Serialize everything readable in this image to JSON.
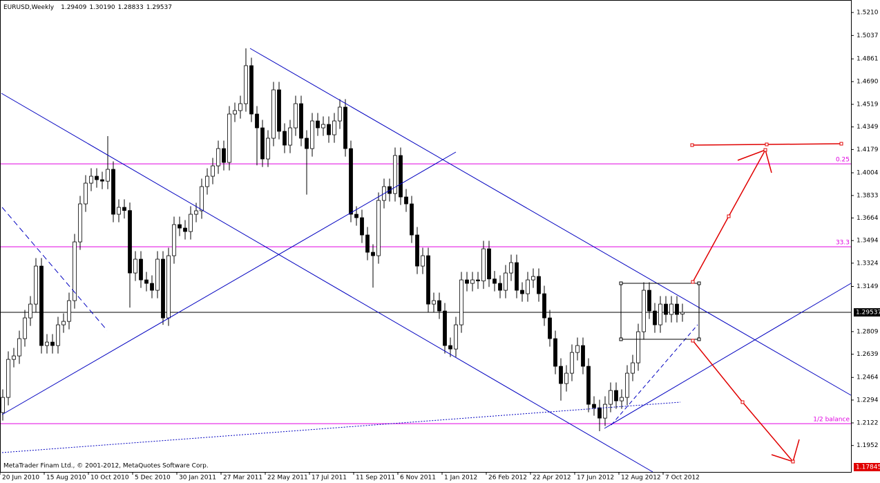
{
  "chart_data": {
    "type": "candlestick",
    "title": "EURUSD,Weekly",
    "header_values": [
      "1.29409",
      "1.30190",
      "1.28833",
      "1.29537"
    ],
    "open": [
      1.22,
      1.2314,
      1.26,
      1.2626,
      1.2756,
      1.2912,
      1.3016,
      1.3302,
      1.2704,
      1.273,
      1.2704,
      1.286,
      1.2886,
      1.3042,
      1.3484,
      1.377,
      1.3926,
      1.3978,
      1.3952,
      1.3941,
      1.403,
      1.3692,
      1.3744,
      1.372,
      1.325,
      1.3354,
      1.3198,
      1.3172,
      1.312,
      1.3354,
      1.2912,
      1.338,
      1.3614,
      1.3588,
      1.3562,
      1.3692,
      1.3718,
      1.39,
      1.3978,
      1.4056,
      1.4186,
      1.4082,
      1.4446,
      1.4472,
      1.4524,
      1.481,
      1.4446,
      1.4342,
      1.4108,
      1.4264,
      1.4628,
      1.4316,
      1.4212,
      1.4342,
      1.4524,
      1.4264,
      1.4186,
      1.4394,
      1.4342,
      1.4368,
      1.429,
      1.4394,
      1.4498,
      1.4186,
      1.3692,
      1.3666,
      1.3536,
      1.3406,
      1.338,
      1.3796,
      1.39,
      1.3848,
      1.4134,
      1.3822,
      1.377,
      1.3536,
      1.3302,
      1.338,
      1.3016,
      1.3042,
      1.2964,
      1.2704,
      1.2678,
      1.286,
      1.3198,
      1.3172,
      1.3198,
      1.319,
      1.3432,
      1.3205,
      1.3172,
      1.312,
      1.325,
      1.3328,
      1.312,
      1.3094,
      1.3198,
      1.3224,
      1.3094,
      1.2912,
      1.2756,
      1.2548,
      1.2418,
      1.2496,
      1.2652,
      1.2704,
      1.2548,
      1.2262,
      1.2236,
      1.2158,
      1.2262,
      1.2366,
      1.2288,
      1.2314,
      1.2496,
      1.2574,
      1.2808,
      1.312,
      1.2964,
      1.286,
      1.3016,
      1.2938,
      1.3016,
      1.2941
    ],
    "high": [
      1.2374,
      1.266,
      1.2686,
      1.2816,
      1.2972,
      1.3076,
      1.3362,
      1.3362,
      1.279,
      1.279,
      1.292,
      1.2946,
      1.3102,
      1.3544,
      1.383,
      1.3986,
      1.4038,
      1.4038,
      1.4012,
      1.428,
      1.409,
      1.3804,
      1.3804,
      1.378,
      1.3414,
      1.3414,
      1.3258,
      1.3232,
      1.3414,
      1.3414,
      1.344,
      1.3674,
      1.3674,
      1.3648,
      1.3752,
      1.3778,
      1.396,
      1.4038,
      1.4116,
      1.4246,
      1.4246,
      1.4506,
      1.4532,
      1.4584,
      1.494,
      1.487,
      1.4506,
      1.4402,
      1.4324,
      1.4688,
      1.4688,
      1.4376,
      1.4402,
      1.4584,
      1.4584,
      1.4324,
      1.4454,
      1.4454,
      1.4428,
      1.4428,
      1.4454,
      1.4558,
      1.4558,
      1.4246,
      1.3752,
      1.3726,
      1.3596,
      1.3466,
      1.3856,
      1.396,
      1.396,
      1.4194,
      1.4194,
      1.3882,
      1.383,
      1.3596,
      1.344,
      1.344,
      1.3102,
      1.3102,
      1.3024,
      1.2764,
      1.292,
      1.3258,
      1.3258,
      1.3258,
      1.3258,
      1.3492,
      1.3492,
      1.3265,
      1.3232,
      1.331,
      1.3388,
      1.3388,
      1.318,
      1.3258,
      1.3284,
      1.3284,
      1.3154,
      1.2972,
      1.2816,
      1.2608,
      1.2556,
      1.2712,
      1.2764,
      1.2764,
      1.2608,
      1.2322,
      1.2296,
      1.2322,
      1.2426,
      1.2426,
      1.2374,
      1.2556,
      1.2634,
      1.2868,
      1.318,
      1.318,
      1.3024,
      1.3076,
      1.3076,
      1.3076,
      1.3076,
      1.3019
    ],
    "low": [
      1.214,
      1.2254,
      1.254,
      1.2566,
      1.2696,
      1.2852,
      1.2956,
      1.2644,
      1.2644,
      1.2644,
      1.2644,
      1.28,
      1.2826,
      1.2982,
      1.3424,
      1.371,
      1.3866,
      1.3892,
      1.3881,
      1.3881,
      1.3632,
      1.3632,
      1.366,
      1.299,
      1.319,
      1.3138,
      1.3112,
      1.306,
      1.306,
      1.286,
      1.2852,
      1.332,
      1.3528,
      1.3502,
      1.3502,
      1.3632,
      1.3658,
      1.384,
      1.3918,
      1.3996,
      1.4022,
      1.4022,
      1.4386,
      1.4412,
      1.4464,
      1.4386,
      1.406,
      1.4048,
      1.4048,
      1.4204,
      1.4256,
      1.4152,
      1.4152,
      1.4282,
      1.4204,
      1.384,
      1.4126,
      1.4282,
      1.4282,
      1.423,
      1.423,
      1.4334,
      1.4126,
      1.3632,
      1.3606,
      1.3476,
      1.3346,
      1.314,
      1.332,
      1.3736,
      1.3788,
      1.3788,
      1.3762,
      1.371,
      1.3476,
      1.3242,
      1.3242,
      1.2956,
      1.2956,
      1.2904,
      1.2644,
      1.2618,
      1.2618,
      1.28,
      1.3112,
      1.3112,
      1.313,
      1.313,
      1.3145,
      1.3112,
      1.306,
      1.306,
      1.319,
      1.306,
      1.3034,
      1.3034,
      1.3138,
      1.3034,
      1.2852,
      1.2696,
      1.2488,
      1.229,
      1.2358,
      1.2436,
      1.2592,
      1.2488,
      1.2202,
      1.2176,
      1.206,
      1.2098,
      1.2202,
      1.2228,
      1.2228,
      1.2254,
      1.2436,
      1.2514,
      1.2748,
      1.2904,
      1.28,
      1.28,
      1.2878,
      1.2878,
      1.2878,
      1.2883
    ],
    "close": [
      1.2314,
      1.26,
      1.2626,
      1.2756,
      1.2912,
      1.3016,
      1.3302,
      1.2704,
      1.273,
      1.2704,
      1.286,
      1.2886,
      1.3042,
      1.3484,
      1.377,
      1.3926,
      1.3978,
      1.3952,
      1.3941,
      1.403,
      1.3692,
      1.3744,
      1.372,
      1.325,
      1.3354,
      1.3198,
      1.3172,
      1.312,
      1.3354,
      1.2912,
      1.338,
      1.3614,
      1.3588,
      1.3562,
      1.3692,
      1.3718,
      1.39,
      1.3978,
      1.4056,
      1.4186,
      1.4082,
      1.4446,
      1.4472,
      1.4524,
      1.481,
      1.4446,
      1.4342,
      1.4108,
      1.4264,
      1.4628,
      1.4316,
      1.4212,
      1.4342,
      1.4524,
      1.4264,
      1.4186,
      1.4394,
      1.4342,
      1.4368,
      1.429,
      1.4394,
      1.4498,
      1.4186,
      1.3692,
      1.3666,
      1.3536,
      1.3406,
      1.338,
      1.3796,
      1.39,
      1.3848,
      1.4134,
      1.3822,
      1.377,
      1.3536,
      1.3302,
      1.338,
      1.3016,
      1.3042,
      1.2964,
      1.2704,
      1.2678,
      1.286,
      1.3198,
      1.3172,
      1.3198,
      1.319,
      1.3432,
      1.3205,
      1.3172,
      1.312,
      1.325,
      1.3328,
      1.312,
      1.3094,
      1.3198,
      1.3224,
      1.3094,
      1.2912,
      1.2756,
      1.2548,
      1.2418,
      1.2496,
      1.2652,
      1.2704,
      1.2548,
      1.2262,
      1.2236,
      1.2158,
      1.2262,
      1.2366,
      1.2288,
      1.2314,
      1.2496,
      1.2574,
      1.2808,
      1.312,
      1.2964,
      1.286,
      1.3016,
      1.2938,
      1.3016,
      1.2938,
      1.2954
    ],
    "xlim": [
      -0.5,
      153.5
    ],
    "ylim": [
      1.1753,
      1.5304
    ],
    "xticks": [
      {
        "value": 0,
        "label": "20 Jun 2010"
      },
      {
        "value": 8,
        "label": "15 Aug 2010"
      },
      {
        "value": 16,
        "label": "10 Oct 2010"
      },
      {
        "value": 24,
        "label": "5 Dec 2010"
      },
      {
        "value": 32,
        "label": "30 Jan 2011"
      },
      {
        "value": 40,
        "label": "27 Mar 2011"
      },
      {
        "value": 48,
        "label": "22 May 2011"
      },
      {
        "value": 56,
        "label": "17 Jul 2011"
      },
      {
        "value": 64,
        "label": "11 Sep 2011"
      },
      {
        "value": 72,
        "label": "6 Nov 2011"
      },
      {
        "value": 80,
        "label": "1 Jan 2012"
      },
      {
        "value": 88,
        "label": "26 Feb 2012"
      },
      {
        "value": 96,
        "label": "22 Apr 2012"
      },
      {
        "value": 104,
        "label": "17 Jun 2012"
      },
      {
        "value": 112,
        "label": "12 Aug 2012"
      },
      {
        "value": 120,
        "label": "7 Oct 2012"
      }
    ],
    "yticks": [
      {
        "value": 1.521,
        "label": "1.5210"
      },
      1.5037,
      1.4861,
      {
        "value": 1.469,
        "label": "1.4690"
      },
      1.4519,
      1.4349,
      1.4179,
      1.4004,
      1.3833,
      1.3664,
      1.3494,
      1.3324,
      1.3149,
      1.2809,
      1.2639,
      1.2464,
      1.2294,
      1.2122,
      1.1952
    ],
    "levels": [
      {
        "value": 1.4071,
        "label": "0.25"
      },
      {
        "value": 1.3447,
        "label": "33.3"
      },
      {
        "value": 1.2116,
        "label": "1/2 balance"
      }
    ],
    "level_color": "#e000e0",
    "current_price": 1.29537,
    "target_price": 1.17845,
    "footer": "MetaTrader Finam Ltd., © 2001-2012, MetaQuotes Software Corp."
  }
}
